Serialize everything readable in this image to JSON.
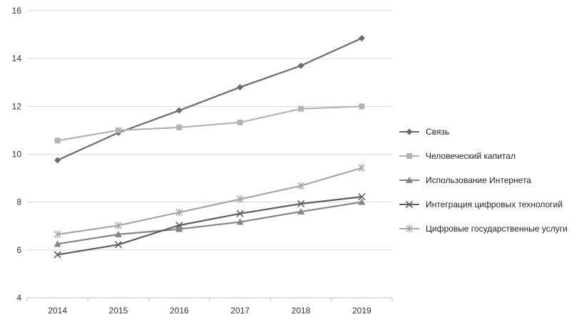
{
  "chart_data": {
    "type": "line",
    "title": "",
    "xlabel": "",
    "ylabel": "",
    "x": [
      "2014",
      "2015",
      "2016",
      "2017",
      "2018",
      "2019"
    ],
    "ylim": [
      4,
      16
    ],
    "yticks": [
      "4",
      "6",
      "8",
      "10",
      "12",
      "14",
      "16"
    ],
    "grid": "horizontal",
    "legend_position": "right",
    "series": [
      {
        "name": "Связь",
        "marker": "diamond",
        "color": "#6b6b6b",
        "values": [
          9.75,
          10.9,
          11.83,
          12.8,
          13.7,
          14.85
        ]
      },
      {
        "name": "Человеческий капитал",
        "marker": "square",
        "color": "#b3b3b3",
        "values": [
          10.57,
          11.0,
          11.12,
          11.33,
          11.9,
          12.0
        ]
      },
      {
        "name": "Использование Интернета",
        "marker": "triangle",
        "color": "#858585",
        "values": [
          6.25,
          6.65,
          6.87,
          7.17,
          7.6,
          8.0
        ]
      },
      {
        "name": "Интеграция цифровых технологий",
        "marker": "x",
        "color": "#5e5e5e",
        "values": [
          5.8,
          6.22,
          7.03,
          7.52,
          7.93,
          8.22
        ]
      },
      {
        "name": "Цифровые государственные услуги",
        "marker": "star",
        "color": "#a6a6a6",
        "values": [
          6.65,
          7.02,
          7.57,
          8.12,
          8.68,
          9.43
        ]
      }
    ]
  }
}
